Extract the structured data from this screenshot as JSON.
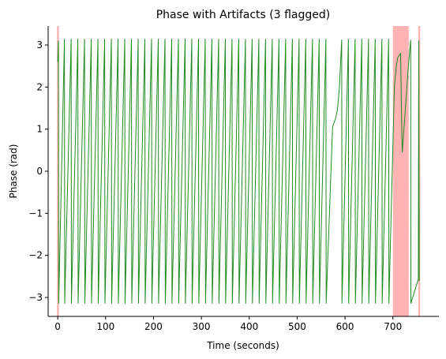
{
  "chart_data": {
    "type": "line",
    "title": "Phase with Artifacts (3 flagged)",
    "xlabel": "Time (seconds)",
    "ylabel": "Phase (rad)",
    "xlim": [
      -20,
      796
    ],
    "ylim": [
      -3.45,
      3.45
    ],
    "x_ticks": [
      {
        "value": 0,
        "label": "0"
      },
      {
        "value": 100,
        "label": "100"
      },
      {
        "value": 200,
        "label": "200"
      },
      {
        "value": 300,
        "label": "300"
      },
      {
        "value": 400,
        "label": "400"
      },
      {
        "value": 500,
        "label": "500"
      },
      {
        "value": 600,
        "label": "600"
      },
      {
        "value": 700,
        "label": "700"
      }
    ],
    "y_ticks": [
      {
        "value": -3,
        "label": "−3"
      },
      {
        "value": -2,
        "label": "−2"
      },
      {
        "value": -1,
        "label": "−1"
      },
      {
        "value": 0,
        "label": "0"
      },
      {
        "value": 1,
        "label": "1"
      },
      {
        "value": 2,
        "label": "2"
      },
      {
        "value": 3,
        "label": "3"
      }
    ],
    "grid": false,
    "artifact_spans": [
      {
        "start": -1.5,
        "end": 2.5
      },
      {
        "start": 700,
        "end": 733
      },
      {
        "start": 753,
        "end": 757
      }
    ],
    "series": [
      {
        "points": [
          [
            0.0,
            2.6
          ],
          [
            1.5,
            3.1
          ],
          [
            2.0,
            -3.14
          ],
          [
            14.0,
            3.14
          ],
          [
            14.6,
            -3.14
          ],
          [
            28.0,
            3.14
          ],
          [
            28.6,
            -3.14
          ],
          [
            42.0,
            3.14
          ],
          [
            42.6,
            -3.14
          ],
          [
            56.0,
            3.14
          ],
          [
            56.6,
            -3.14
          ],
          [
            70.0,
            3.14
          ],
          [
            70.6,
            -3.14
          ],
          [
            84.0,
            3.14
          ],
          [
            84.6,
            -3.14
          ],
          [
            98.0,
            3.14
          ],
          [
            98.6,
            -3.14
          ],
          [
            112.0,
            3.14
          ],
          [
            112.6,
            -3.14
          ],
          [
            126.0,
            3.14
          ],
          [
            126.6,
            -3.14
          ],
          [
            140.0,
            3.14
          ],
          [
            140.6,
            -3.14
          ],
          [
            154.0,
            3.14
          ],
          [
            154.6,
            -3.14
          ],
          [
            168.0,
            3.14
          ],
          [
            168.6,
            -3.14
          ],
          [
            182.0,
            3.14
          ],
          [
            182.6,
            -3.14
          ],
          [
            196.0,
            3.14
          ],
          [
            196.6,
            -3.14
          ],
          [
            210.0,
            3.14
          ],
          [
            210.6,
            -3.14
          ],
          [
            224.0,
            3.14
          ],
          [
            224.6,
            -3.14
          ],
          [
            238.0,
            3.14
          ],
          [
            238.6,
            -3.14
          ],
          [
            252.0,
            3.14
          ],
          [
            252.6,
            -3.14
          ],
          [
            266.0,
            3.14
          ],
          [
            266.6,
            -3.14
          ],
          [
            280.0,
            3.14
          ],
          [
            280.6,
            -3.14
          ],
          [
            294.0,
            3.14
          ],
          [
            294.6,
            -3.14
          ],
          [
            308.0,
            3.14
          ],
          [
            308.6,
            -3.14
          ],
          [
            322.0,
            3.14
          ],
          [
            322.6,
            -3.14
          ],
          [
            336.0,
            3.14
          ],
          [
            336.6,
            -3.14
          ],
          [
            350.0,
            3.14
          ],
          [
            350.6,
            -3.14
          ],
          [
            364.0,
            3.14
          ],
          [
            364.6,
            -3.14
          ],
          [
            378.0,
            3.14
          ],
          [
            378.6,
            -3.14
          ],
          [
            392.0,
            3.14
          ],
          [
            392.6,
            -3.14
          ],
          [
            406.0,
            3.14
          ],
          [
            406.6,
            -3.14
          ],
          [
            420.0,
            3.14
          ],
          [
            420.6,
            -3.14
          ],
          [
            434.0,
            3.14
          ],
          [
            434.6,
            -3.14
          ],
          [
            448.0,
            3.14
          ],
          [
            448.6,
            -3.14
          ],
          [
            462.0,
            3.14
          ],
          [
            462.6,
            -3.14
          ],
          [
            476.0,
            3.14
          ],
          [
            476.6,
            -3.14
          ],
          [
            490.0,
            3.14
          ],
          [
            490.6,
            -3.14
          ],
          [
            504.0,
            3.14
          ],
          [
            504.6,
            -3.14
          ],
          [
            518.0,
            3.14
          ],
          [
            518.6,
            -3.14
          ],
          [
            532.0,
            3.14
          ],
          [
            532.6,
            -3.14
          ],
          [
            546.0,
            3.14
          ],
          [
            546.6,
            -3.14
          ],
          [
            560.0,
            3.14
          ],
          [
            560.6,
            -3.14
          ],
          [
            574.0,
            1.05
          ],
          [
            580.0,
            1.25
          ],
          [
            584.0,
            1.45
          ],
          [
            588.0,
            1.95
          ],
          [
            593.0,
            3.12
          ],
          [
            593.6,
            -3.14
          ],
          [
            607.0,
            3.14
          ],
          [
            607.6,
            -3.14
          ],
          [
            621.0,
            3.14
          ],
          [
            621.6,
            -3.14
          ],
          [
            635.0,
            3.14
          ],
          [
            635.6,
            -3.14
          ],
          [
            649.0,
            3.14
          ],
          [
            649.6,
            -3.14
          ],
          [
            663.0,
            3.14
          ],
          [
            663.6,
            -3.14
          ],
          [
            677.0,
            3.14
          ],
          [
            677.6,
            -3.14
          ],
          [
            691.0,
            3.14
          ],
          [
            691.6,
            -3.14
          ],
          [
            703.0,
            2.0
          ],
          [
            707.0,
            2.5
          ],
          [
            710.0,
            2.7
          ],
          [
            713.0,
            2.75
          ],
          [
            716.0,
            2.8
          ],
          [
            718.0,
            1.3
          ],
          [
            719.5,
            0.45
          ],
          [
            723.0,
            1.0
          ],
          [
            727.0,
            1.65
          ],
          [
            732.0,
            2.45
          ],
          [
            737.0,
            3.12
          ],
          [
            737.5,
            -3.14
          ],
          [
            752.0,
            -2.6
          ],
          [
            753.0,
            -2.6
          ],
          [
            754.0,
            3.1
          ],
          [
            755.0,
            -2.6
          ],
          [
            756.0,
            -2.6
          ]
        ]
      }
    ]
  },
  "colors": {
    "line": "#228b22",
    "artifact": "#ffb3b3",
    "axis": "#000000"
  }
}
